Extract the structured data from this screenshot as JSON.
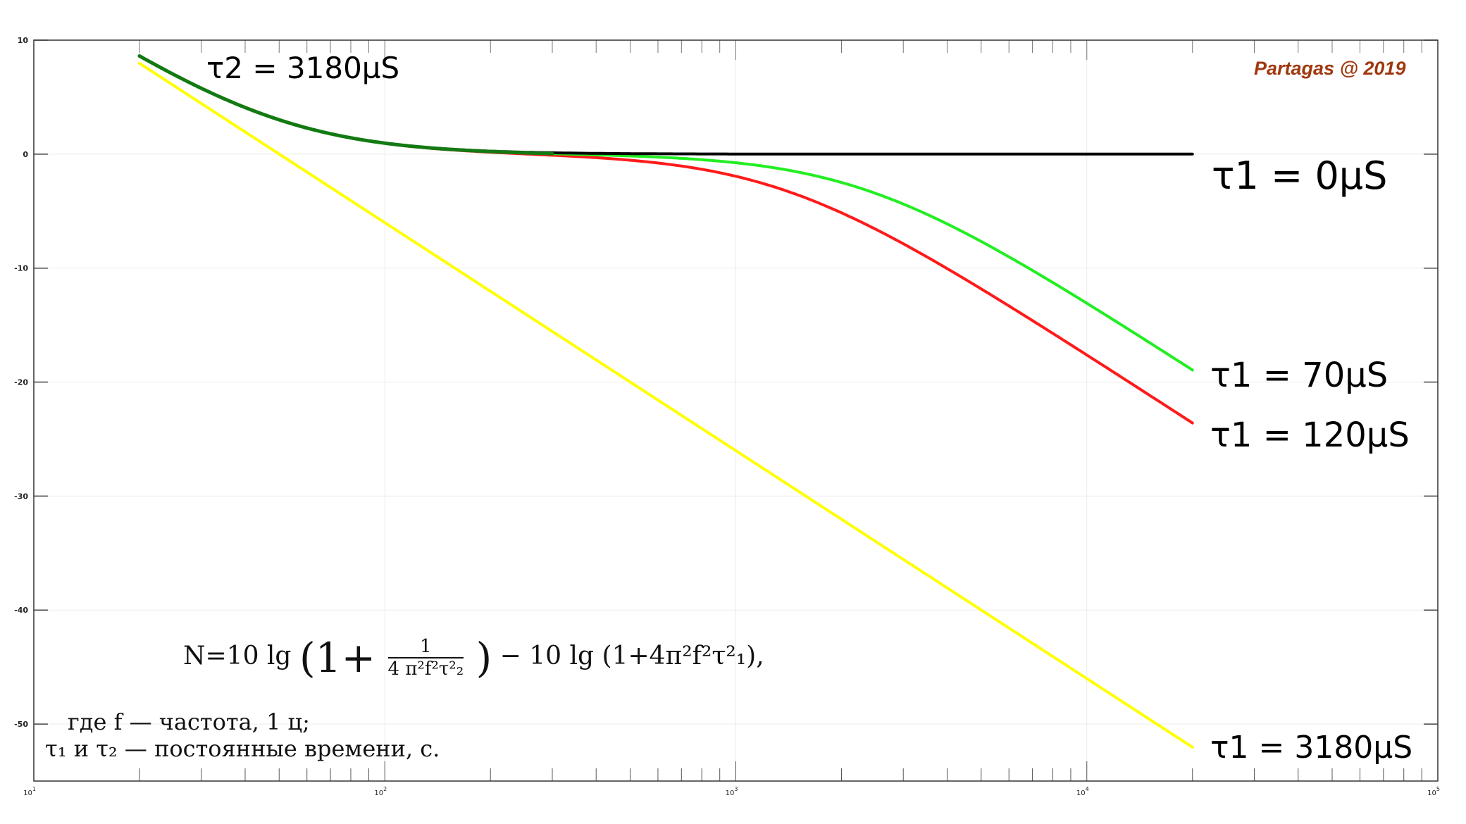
{
  "chart_data": {
    "type": "line",
    "title": "",
    "xlabel": "",
    "ylabel": "",
    "xscale": "log",
    "xlim": [
      10,
      100000
    ],
    "ylim": [
      -55,
      10
    ],
    "grid": true,
    "x_tick_labels": [
      {
        "base": "10",
        "exp": "1",
        "value": 10
      },
      {
        "base": "10",
        "exp": "2",
        "value": 100
      },
      {
        "base": "10",
        "exp": "3",
        "value": 1000
      },
      {
        "base": "10",
        "exp": "4",
        "value": 10000
      },
      {
        "base": "10",
        "exp": "5",
        "value": 100000
      }
    ],
    "y_ticks": [
      10,
      0,
      -10,
      -20,
      -30,
      -40,
      -50
    ],
    "y_tick_labels": [
      "10",
      "0",
      "-10",
      "-20",
      "-30",
      "-40",
      "-50"
    ],
    "tau2_us": 3180,
    "f_range": [
      20,
      20000
    ],
    "x": [
      20,
      50,
      100,
      200,
      500,
      1000,
      2000,
      5000,
      10000,
      20000
    ],
    "series": [
      {
        "name": "τ1 = 3180µS",
        "tau1_us": 3180,
        "color": "#ffff00",
        "values": [
          7.97,
          0.0,
          -6.01,
          -12.04,
          -19.99,
          -26.01,
          -32.04,
          -40.0,
          -46.01,
          -52.03
        ]
      },
      {
        "name": "τ1 = 120µS",
        "tau1_us": 120,
        "color": "#ff1a1a",
        "values": [
          8.61,
          3.0,
          0.95,
          0.16,
          -0.54,
          -1.94,
          -5.15,
          -11.82,
          -17.62,
          -23.59
        ]
      },
      {
        "name": "τ1 = 70µS",
        "tau1_us": 70,
        "color": "#22ee22",
        "values": [
          8.61,
          3.01,
          0.96,
          0.23,
          -0.16,
          -0.76,
          -2.49,
          -7.66,
          -13.08,
          -18.94
        ]
      },
      {
        "name": "τ1 = 0µS",
        "tau1_us": 0,
        "color": "#000000",
        "values": [
          8.61,
          3.01,
          0.97,
          0.26,
          0.04,
          0.01,
          0.0,
          0.0,
          0.0,
          0.0
        ]
      }
    ],
    "annotations": {
      "tau2_label": "τ2 = 3180µS",
      "brand": "Partagas @ 2019"
    }
  },
  "formula": {
    "lhs": "N=10 lg",
    "open": "(1+",
    "num": "1",
    "den": "4 π²f²τ²₂",
    "close": ")",
    "rest": "− 10 lg (1+4π²f²τ²₁),",
    "where_line": "где f — частота, 1 ц;",
    "tau_line": "τ₁ и τ₂ — постоянные времени, с."
  }
}
